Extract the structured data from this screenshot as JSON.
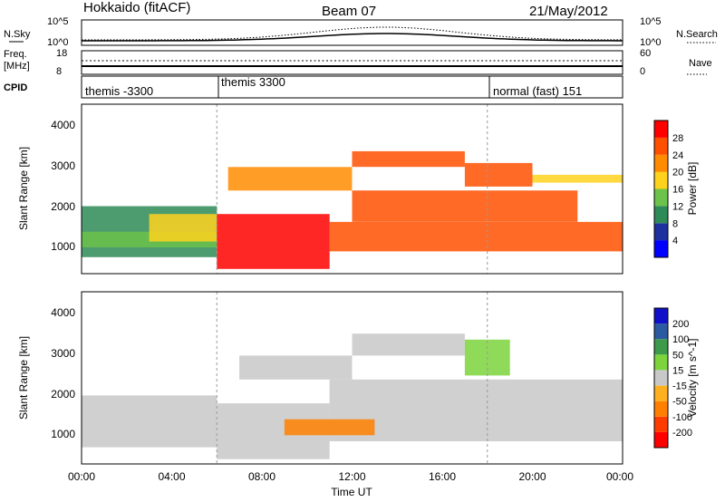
{
  "header": {
    "station": "Hokkaido (fitACF)",
    "beam": "Beam 07",
    "date": "21/May/2012"
  },
  "strips": {
    "nsky_label": "N.Sky",
    "nsky_ticks": [
      "10^5",
      "10^0"
    ],
    "nsearch_label": "N.Search",
    "nsearch_ticks": [
      "10^5",
      "10^0"
    ],
    "freq_label_1": "Freq.",
    "freq_label_2": "[MHz]",
    "freq_ticks": [
      "18",
      "8"
    ],
    "nave_label": "Nave",
    "nave_ticks": [
      "60",
      "0"
    ],
    "cpid_label": "CPID",
    "cpid_segments": [
      {
        "label": "themis -3300",
        "start_hour": 0
      },
      {
        "label": "themis 3300",
        "start_hour": 6
      },
      {
        "label": "normal (fast) 151",
        "start_hour": 18
      }
    ]
  },
  "chart_data": [
    {
      "type": "heatmap",
      "title": "",
      "xlabel": "",
      "ylabel": "Slant Range [km]",
      "x_range_hours": [
        0,
        24
      ],
      "ylim": [
        180,
        4500
      ],
      "y_ticks": [
        "1000",
        "2000",
        "3000",
        "4000"
      ],
      "colorbar_label": "Power [dB]",
      "colorbar_ticks": [
        "28",
        "24",
        "20",
        "16",
        "12",
        "8",
        "4"
      ],
      "colorbar_colors": [
        "#0000ff",
        "#1e2f9e",
        "#2e8b57",
        "#6cc24a",
        "#ffd21e",
        "#ff8c00",
        "#ff5000",
        "#ff0000"
      ],
      "regions": [
        {
          "t0": 0.0,
          "t1": 6.0,
          "r0": 600,
          "r1": 1900,
          "level": 2
        },
        {
          "t0": 0.0,
          "t1": 6.0,
          "r0": 850,
          "r1": 1250,
          "level": 3
        },
        {
          "t0": 3.0,
          "t1": 6.0,
          "r0": 1000,
          "r1": 1700,
          "level": 4
        },
        {
          "t0": 6.0,
          "t1": 11.0,
          "r0": 300,
          "r1": 1700,
          "level": 7
        },
        {
          "t0": 11.0,
          "t1": 24.0,
          "r0": 750,
          "r1": 1500,
          "level": 6
        },
        {
          "t0": 12.0,
          "t1": 22.0,
          "r0": 1500,
          "r1": 2300,
          "level": 6
        },
        {
          "t0": 6.5,
          "t1": 12.0,
          "r0": 2300,
          "r1": 2900,
          "level": 5
        },
        {
          "t0": 12.0,
          "t1": 17.0,
          "r0": 2900,
          "r1": 3300,
          "level": 6
        },
        {
          "t0": 17.0,
          "t1": 20.0,
          "r0": 2400,
          "r1": 3000,
          "level": 6
        },
        {
          "t0": 20.0,
          "t1": 24.0,
          "r0": 2500,
          "r1": 2700,
          "level": 4
        }
      ]
    },
    {
      "type": "heatmap",
      "title": "",
      "xlabel": "Time UT",
      "ylabel": "Slant Range [km]",
      "x_range_hours": [
        0,
        24
      ],
      "x_ticks": [
        "00:00",
        "04:00",
        "08:00",
        "12:00",
        "16:00",
        "20:00",
        "00:00"
      ],
      "ylim": [
        180,
        4500
      ],
      "y_ticks": [
        "1000",
        "2000",
        "3000",
        "4000"
      ],
      "colorbar_label": "Velocity [m s^-1]",
      "colorbar_ticks": [
        "200",
        "100",
        "50",
        "15",
        "-15",
        "-50",
        "-100",
        "-200"
      ],
      "colorbar_colors": [
        "#ff0000",
        "#ff3c00",
        "#ff8000",
        "#ffb020",
        "#c8c8c8",
        "#7cd33c",
        "#3c9a4a",
        "#2c5aa0",
        "#1010c8"
      ],
      "regions": [
        {
          "t0": 0.0,
          "t1": 6.0,
          "r0": 600,
          "r1": 1900,
          "level": 4
        },
        {
          "t0": 6.0,
          "t1": 11.0,
          "r0": 300,
          "r1": 1700,
          "level": 4
        },
        {
          "t0": 11.0,
          "t1": 24.0,
          "r0": 750,
          "r1": 2300,
          "level": 4
        },
        {
          "t0": 7.0,
          "t1": 12.0,
          "r0": 2300,
          "r1": 2900,
          "level": 4
        },
        {
          "t0": 12.0,
          "t1": 17.0,
          "r0": 2900,
          "r1": 3450,
          "level": 4
        },
        {
          "t0": 17.0,
          "t1": 19.0,
          "r0": 2400,
          "r1": 3300,
          "level": 5
        },
        {
          "t0": 9.0,
          "t1": 13.0,
          "r0": 900,
          "r1": 1300,
          "level": 2
        }
      ]
    }
  ]
}
